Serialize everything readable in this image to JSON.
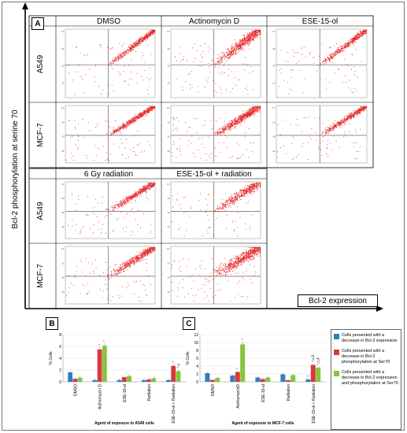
{
  "figure": {
    "panel_a_letter": "A",
    "panel_b_letter": "B",
    "panel_c_letter": "C",
    "y_axis_label": "Bcl-2 phosphorylation at serine 70",
    "x_axis_label": "Bcl-2 expression",
    "top_conditions": [
      "DMSO",
      "Actinomycin D",
      "ESE-15-ol"
    ],
    "bottom_conditions": [
      "6 Gy radiation",
      "ESE-15-ol + radiation"
    ],
    "cell_lines": [
      "A549",
      "MCF-7"
    ],
    "colors": {
      "blue": "#2f7ec2",
      "red": "#d9393b",
      "green": "#86c440",
      "dots": "#e62020"
    }
  },
  "chart_data": [
    {
      "type": "bar",
      "panel": "B",
      "categories": [
        "DMSO",
        "Actinomycin D",
        "ESE-15-ol",
        "Radiation",
        "ESE-15-ol + Radiation"
      ],
      "series": [
        {
          "name": "Cells presented with a decrease in Bcl-2 expression",
          "values": [
            1.6,
            0.3,
            0.3,
            0.3,
            0.3
          ]
        },
        {
          "name": "Cells presented with a decrease in Bcl-2 phosphorylation at Ser70",
          "values": [
            0.5,
            5.5,
            0.8,
            0.4,
            2.7
          ]
        },
        {
          "name": "Cells presented with a decrease in Bcl-2 expression and phosphorylation at Ser70",
          "values": [
            0.7,
            6.1,
            1.0,
            0.6,
            1.8
          ]
        }
      ],
      "ylabel": "% Cells",
      "xlabel": "Agent of exposure to A549 cells",
      "ylim": [
        0,
        8
      ],
      "yticks": [
        0,
        2,
        4,
        6,
        8
      ],
      "annotations": [
        "*",
        "*",
        "*",
        "*,±"
      ]
    },
    {
      "type": "bar",
      "panel": "C",
      "categories": [
        "DMSO",
        "ActinomycinD",
        "ESE-15-ol",
        "Radiation",
        "ESE-15-ol + Radiation"
      ],
      "series": [
        {
          "name": "Cells presented with a decrease in Bcl-2 expression",
          "values": [
            2.2,
            1.6,
            1.1,
            1.9,
            0.6
          ]
        },
        {
          "name": "Cells presented with a decrease in Bcl-2 phosphorylation at Ser70",
          "values": [
            0.5,
            2.5,
            0.7,
            0.4,
            4.3
          ]
        },
        {
          "name": "Cells presented with a decrease in Bcl-2 expression and phosphorylation at Ser70",
          "values": [
            1.0,
            9.5,
            1.1,
            1.7,
            3.6
          ]
        }
      ],
      "ylabel": "% Cells",
      "xlabel": "Agent of exposure to MCF-7 cells",
      "ylim": [
        0,
        12
      ],
      "yticks": [
        0,
        2,
        4,
        6,
        8,
        10,
        12
      ],
      "annotations": [
        "*",
        "*",
        "*",
        "*,±,δ",
        "*,±,δ"
      ]
    }
  ],
  "legend": {
    "items": [
      {
        "label": "Cells presented with a decrease in Bcl-2 expression",
        "color": "#2f7ec2"
      },
      {
        "label": "Cells presented with a decrease in Bcl-2 phosphorylation at Ser70",
        "color": "#d9393b"
      },
      {
        "label": "Cells presented with a decrease in Bcl-2 expression and phosphorylation at Ser70",
        "color": "#86c440"
      }
    ]
  }
}
